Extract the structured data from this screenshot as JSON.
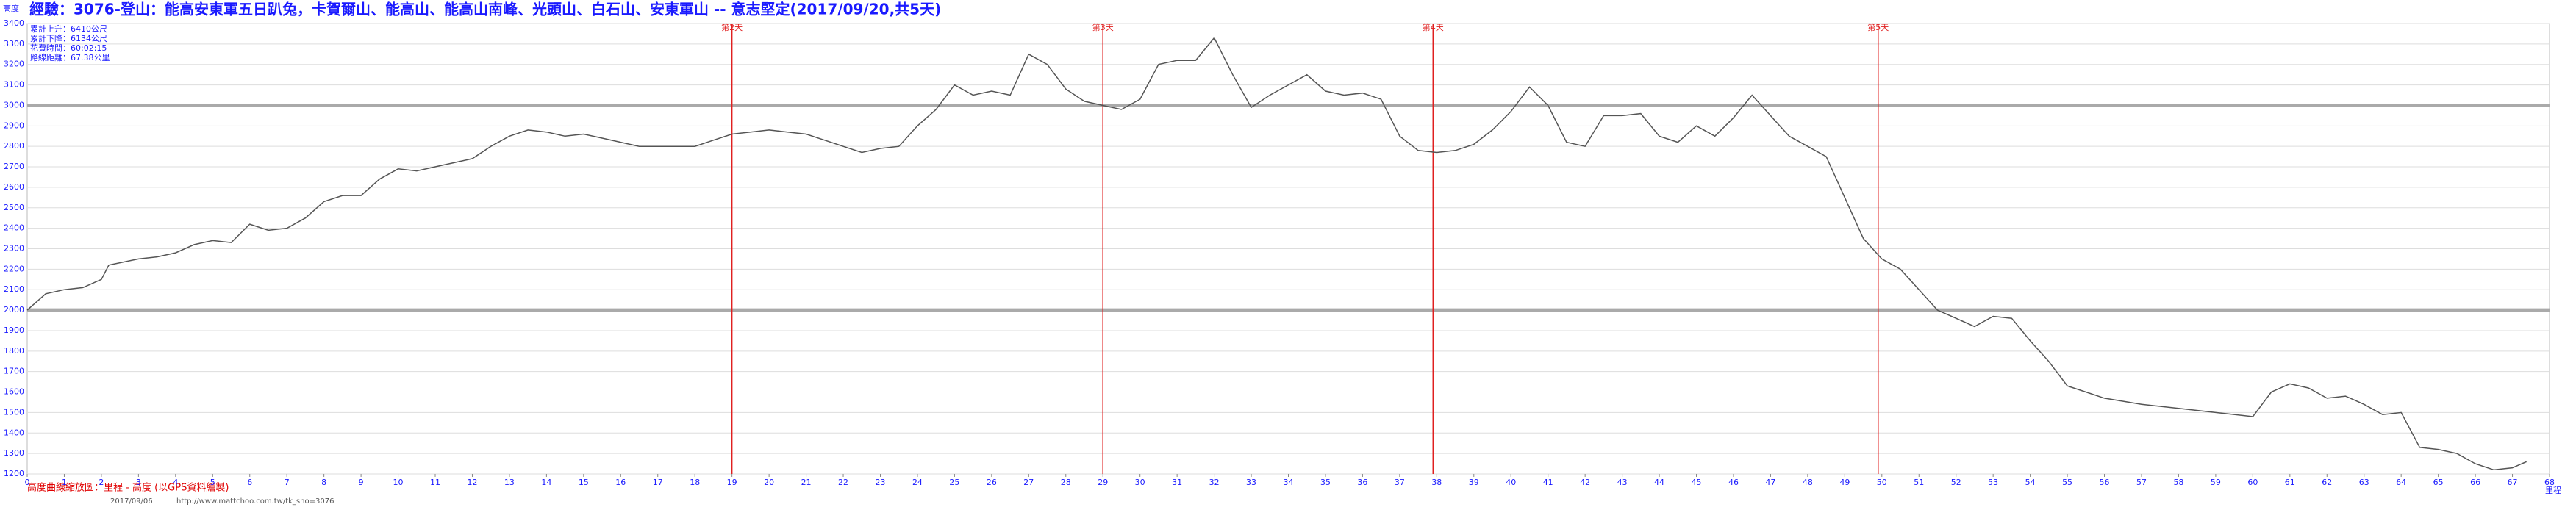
{
  "chart_data": {
    "type": "line",
    "title": "經驗：3076-登山：能高安東軍五日趴兔，卡賀爾山、能高山、能高山南峰、光頭山、白石山、安東軍山 -- 意志堅定(2017/09/20,共5天)",
    "y_label": "高度",
    "x_label": "里程",
    "stats": [
      "累計上升：6410公尺",
      "累計下降：6134公尺",
      "花費時間：60:02:15",
      "路線距離：67.38公里"
    ],
    "footer": "高度曲線縮放圖：里程 - 高度 (以GPS資料繪製)",
    "footer_url": "http://www.mattchoo.com.tw/tk_sno=3076",
    "footer_date": "2017/09/06",
    "color": "#555555",
    "grid": true,
    "markers": [
      {
        "x": 19,
        "label": "第2天"
      },
      {
        "x": 29,
        "label": "第3天"
      },
      {
        "x": 37.9,
        "label": "第4天"
      },
      {
        "x": 49.9,
        "label": "第5天"
      }
    ],
    "marker_color": "#e02020",
    "x": [
      0,
      0.5,
      1,
      1.5,
      2,
      2.2,
      3,
      3.5,
      4,
      4.5,
      5,
      5.5,
      6,
      6.5,
      7,
      7.5,
      8,
      8.5,
      9,
      9.5,
      10,
      10.5,
      11,
      11.5,
      12,
      12.5,
      13,
      13.5,
      14,
      14.5,
      15,
      15.5,
      16,
      16.5,
      17,
      17.5,
      18,
      18.5,
      19,
      19.5,
      20,
      20.5,
      21,
      21.5,
      22,
      22.5,
      23,
      23.5,
      24,
      24.5,
      25,
      25.5,
      26,
      26.5,
      27,
      27.5,
      28,
      28.5,
      29,
      29.5,
      30,
      30.5,
      31,
      31.5,
      32,
      32.5,
      33,
      33.5,
      34,
      34.5,
      35,
      35.5,
      36,
      36.5,
      37,
      37.5,
      38,
      38.5,
      39,
      39.5,
      40,
      40.5,
      41,
      41.5,
      42,
      42.5,
      43,
      43.5,
      44,
      44.5,
      45,
      45.5,
      46,
      46.5,
      47,
      47.5,
      48,
      48.5,
      49,
      49.5,
      50,
      50.5,
      51,
      51.5,
      52,
      52.5,
      53,
      53.5,
      54,
      54.5,
      55,
      55.5,
      56,
      57,
      58,
      59,
      60,
      60.5,
      61,
      61.5,
      62,
      62.5,
      63,
      63.5,
      64,
      64.5,
      65,
      65.5,
      66,
      66.5,
      67,
      67.38
    ],
    "values": [
      2000,
      2080,
      2100,
      2110,
      2150,
      2220,
      2250,
      2260,
      2280,
      2320,
      2340,
      2330,
      2420,
      2390,
      2400,
      2450,
      2530,
      2560,
      2560,
      2640,
      2690,
      2680,
      2700,
      2720,
      2740,
      2800,
      2850,
      2880,
      2870,
      2850,
      2860,
      2840,
      2820,
      2800,
      2800,
      2800,
      2800,
      2830,
      2860,
      2870,
      2880,
      2870,
      2860,
      2830,
      2800,
      2770,
      2790,
      2800,
      2900,
      2980,
      3100,
      3050,
      3070,
      3050,
      3250,
      3200,
      3080,
      3020,
      3000,
      2980,
      3030,
      3200,
      3220,
      3220,
      3330,
      3150,
      2990,
      3050,
      3100,
      3150,
      3070,
      3050,
      3060,
      3030,
      2850,
      2780,
      2770,
      2780,
      2810,
      2880,
      2970,
      3090,
      3000,
      2820,
      2800,
      2950,
      2950,
      2960,
      2850,
      2820,
      2900,
      2850,
      2940,
      3050,
      2950,
      2850,
      2800,
      2750,
      2550,
      2350,
      2250,
      2200,
      2100,
      2000,
      1960,
      1920,
      1970,
      1960,
      1850,
      1750,
      1630,
      1600,
      1570,
      1540,
      1520,
      1500,
      1480,
      1600,
      1640,
      1620,
      1570,
      1580,
      1540,
      1490,
      1500,
      1330,
      1320,
      1300,
      1250,
      1220,
      1230,
      1260
    ],
    "xlim": [
      0,
      68
    ],
    "ylim": [
      1200,
      3400
    ],
    "xticks": [
      0,
      1,
      2,
      3,
      4,
      5,
      6,
      7,
      8,
      9,
      10,
      11,
      12,
      13,
      14,
      15,
      16,
      17,
      18,
      19,
      20,
      21,
      22,
      23,
      24,
      25,
      26,
      27,
      28,
      29,
      30,
      31,
      32,
      33,
      34,
      35,
      36,
      37,
      38,
      39,
      40,
      41,
      42,
      43,
      44,
      45,
      46,
      47,
      48,
      49,
      50,
      51,
      52,
      53,
      54,
      55,
      56,
      57,
      58,
      59,
      60,
      61,
      62,
      63,
      64,
      65,
      66,
      67,
      68
    ],
    "yticks": [
      1200,
      1300,
      1400,
      1500,
      1600,
      1700,
      1800,
      1900,
      2000,
      2100,
      2200,
      2300,
      2400,
      2500,
      2600,
      2700,
      2800,
      2900,
      3000,
      3100,
      3200,
      3300,
      3400
    ]
  }
}
